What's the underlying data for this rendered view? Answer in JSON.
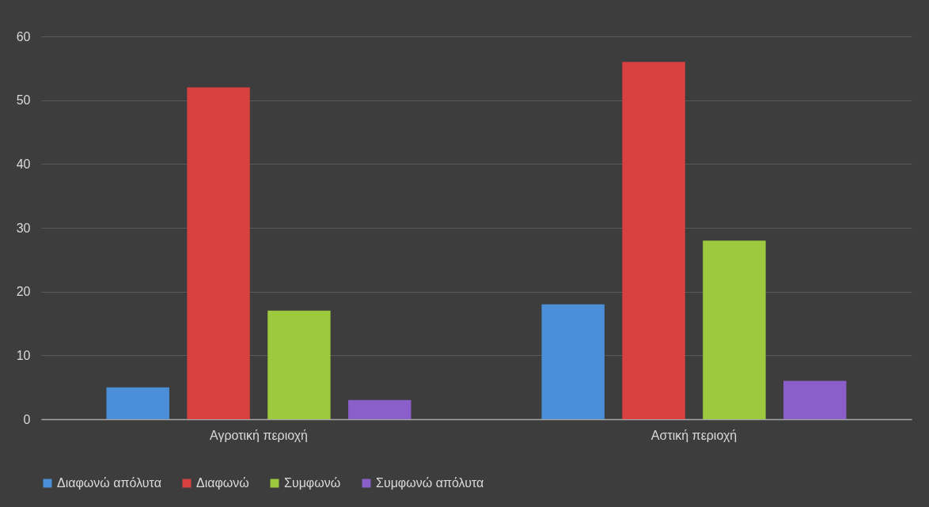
{
  "chart_data": {
    "type": "bar",
    "categories": [
      "Αγροτική περιοχή",
      "Αστική περιοχή"
    ],
    "series": [
      {
        "name": "Διαφωνώ απόλυτα",
        "color": "#4a8fd8",
        "values": [
          5,
          18
        ]
      },
      {
        "name": "Διαφωνώ",
        "color": "#d94141",
        "values": [
          52,
          56
        ]
      },
      {
        "name": "Συμφωνώ",
        "color": "#9cc93d",
        "values": [
          17,
          28
        ]
      },
      {
        "name": "Συμφωνώ απόλυτα",
        "color": "#8a5fc9",
        "values": [
          3,
          6
        ]
      }
    ],
    "ylim": [
      0,
      60
    ],
    "yticks": [
      0,
      10,
      20,
      30,
      40,
      50,
      60
    ],
    "grid": "y",
    "legend": "bottom"
  }
}
